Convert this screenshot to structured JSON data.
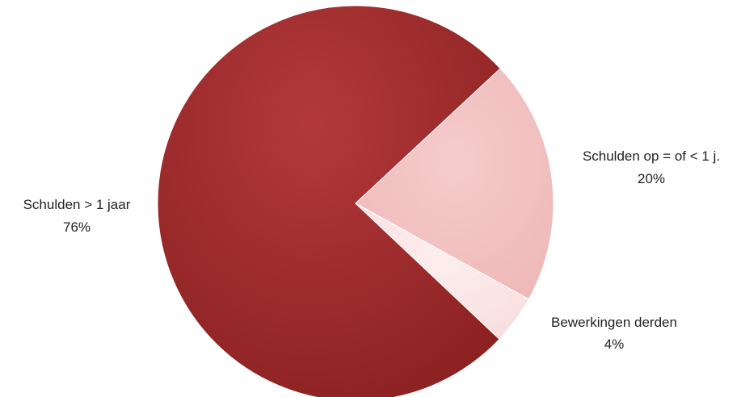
{
  "chart_data": {
    "type": "pie",
    "title": "",
    "slices": [
      {
        "label": "Schulden > 1 jaar",
        "value": 76,
        "value_label": "76%",
        "color": "#a32b2c"
      },
      {
        "label": "Schulden op = of < 1 j.",
        "value": 20,
        "value_label": "20%",
        "color": "#f2c1c1"
      },
      {
        "label": "Bewerkingen derden",
        "value": 4,
        "value_label": "4%",
        "color": "#fbe3e3"
      }
    ],
    "legend": "none",
    "data_labels": "outside"
  }
}
